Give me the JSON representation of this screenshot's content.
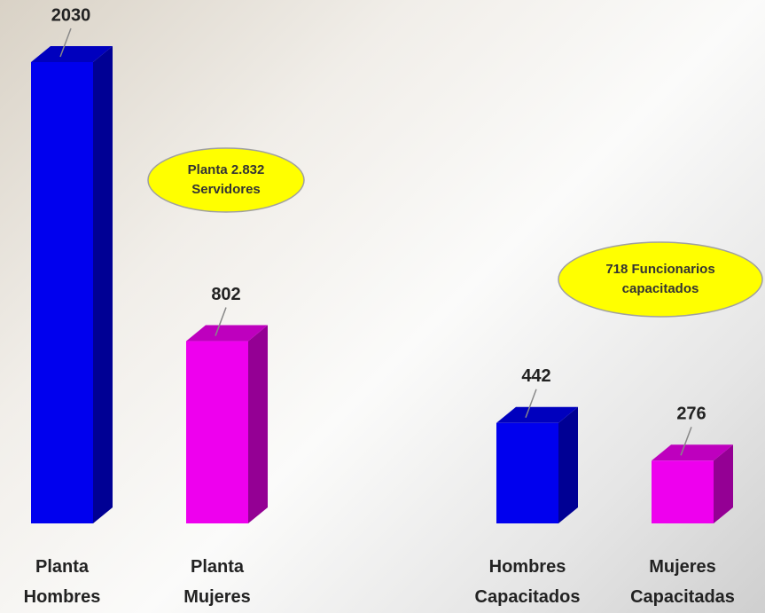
{
  "chart_data": {
    "type": "bar3d",
    "categories": [
      "Planta Hombres",
      "Planta Mujeres",
      null,
      "Hombres Capacitados",
      "Mujeres Capacitadas"
    ],
    "values": [
      2030,
      802,
      null,
      442,
      276
    ],
    "colors": [
      "#0000ee",
      "#ee00ee",
      null,
      "#0000ee",
      "#ee00ee"
    ],
    "annotations": [
      {
        "lines": [
          "Planta 2.832",
          "Servidores"
        ],
        "color": "#ffff00"
      },
      {
        "lines": [
          "718 Funcionarios",
          "capacitados"
        ],
        "color": "#ffff00"
      }
    ]
  }
}
